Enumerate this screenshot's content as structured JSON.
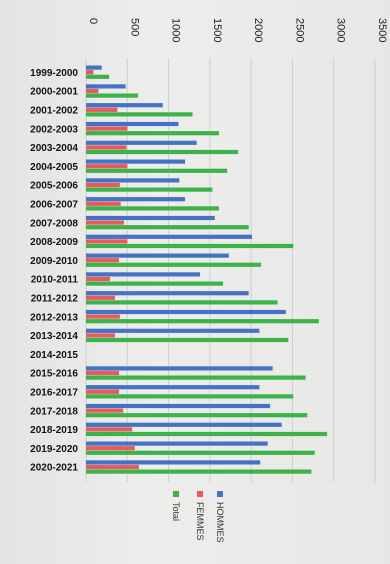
{
  "chart_data": {
    "type": "bar",
    "orientation": "horizontal",
    "categories": [
      "1999-2000",
      "2000-2001",
      "2001-2002",
      "2002-2003",
      "2003-2004",
      "2004-2005",
      "2005-2006",
      "2006-2007",
      "2007-2008",
      "2008-2009",
      "2009-2010",
      "2010-2011",
      "2011-2012",
      "2012-2013",
      "2013-2014",
      "2014-2015",
      "2015-2016",
      "2016-2017",
      "2017-2018",
      "2018-2019",
      "2019-2020",
      "2020-2021"
    ],
    "series": [
      {
        "name": "HOMMES",
        "color": "#4472c4",
        "values": [
          190,
          480,
          930,
          1120,
          1340,
          1200,
          1130,
          1200,
          1560,
          2010,
          1730,
          1380,
          1970,
          2420,
          2100,
          null,
          2260,
          2100,
          2230,
          2370,
          2200,
          2110
        ]
      },
      {
        "name": "FEMMES",
        "color": "#e45c5c",
        "values": [
          90,
          150,
          380,
          500,
          490,
          500,
          410,
          420,
          460,
          500,
          400,
          290,
          350,
          410,
          350,
          null,
          400,
          400,
          450,
          560,
          590,
          640
        ]
      },
      {
        "name": "Total",
        "color": "#3db24a",
        "values": [
          280,
          630,
          1290,
          1610,
          1840,
          1710,
          1530,
          1610,
          1970,
          2510,
          2120,
          1660,
          2320,
          2820,
          2450,
          null,
          2660,
          2510,
          2680,
          2920,
          2770,
          2730
        ]
      }
    ],
    "xlim": [
      0,
      3500
    ],
    "ticks": [
      "0",
      "500",
      "1000",
      "1500",
      "2000",
      "2500",
      "3000",
      "3500"
    ],
    "grid": true,
    "legend_position": "bottom"
  }
}
